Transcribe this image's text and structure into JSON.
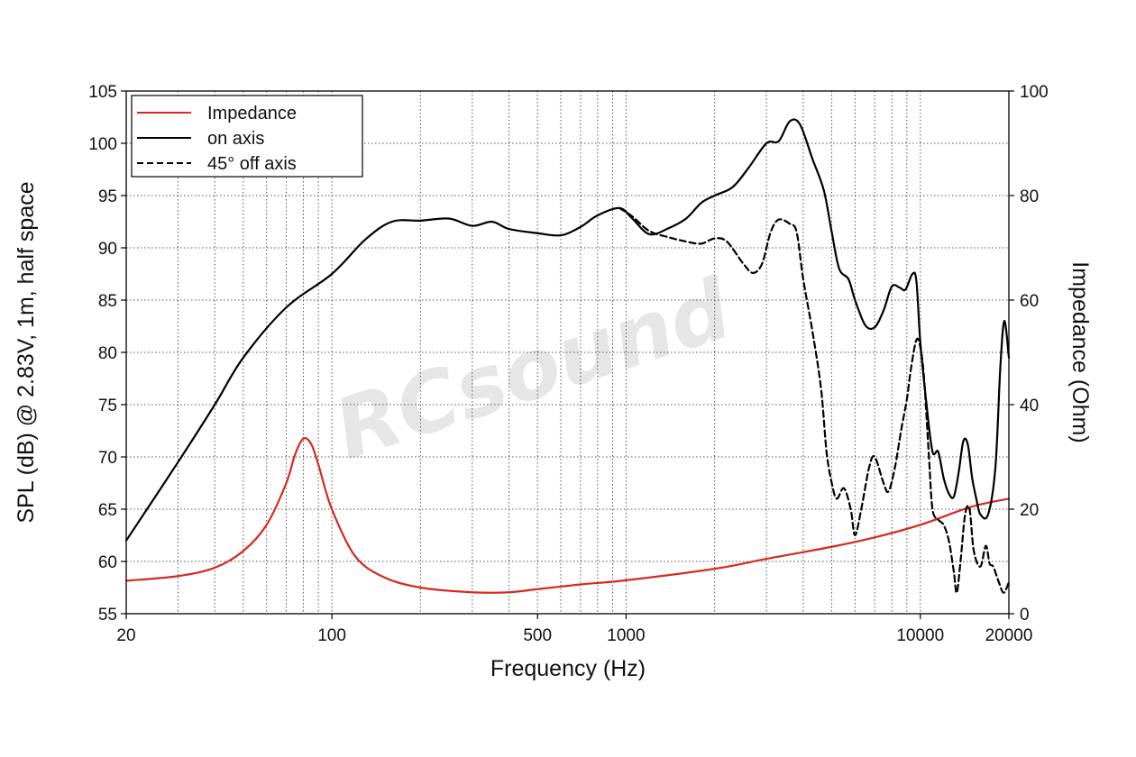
{
  "chart_data": {
    "type": "line",
    "xlabel": "Frequency (Hz)",
    "ylabel": "SPL (dB) @ 2.83V, 1m, half space",
    "y2label": "Impedance (Ohm)",
    "xscale": "log",
    "xlim": [
      20,
      20000
    ],
    "ylim": [
      55,
      105
    ],
    "y2lim": [
      0,
      100
    ],
    "x_ticks": [
      20,
      100,
      500,
      1000,
      10000,
      20000
    ],
    "y_ticks": [
      55,
      60,
      65,
      70,
      75,
      80,
      85,
      90,
      95,
      100,
      105
    ],
    "y2_ticks": [
      0,
      20,
      40,
      60,
      80,
      100
    ],
    "grid": true,
    "legend": "top-left",
    "watermark": "RCsound",
    "series": [
      {
        "name": "Impedance",
        "axis": "right",
        "color": "#d42a1f",
        "dash": "solid",
        "points": [
          [
            20,
            6.3
          ],
          [
            30,
            7.2
          ],
          [
            40,
            8.8
          ],
          [
            50,
            12
          ],
          [
            60,
            17
          ],
          [
            70,
            25
          ],
          [
            75,
            30.5
          ],
          [
            80,
            33.5
          ],
          [
            85,
            32.5
          ],
          [
            90,
            28.5
          ],
          [
            100,
            20
          ],
          [
            120,
            11
          ],
          [
            150,
            7
          ],
          [
            200,
            5
          ],
          [
            300,
            4.1
          ],
          [
            400,
            4.1
          ],
          [
            500,
            4.7
          ],
          [
            700,
            5.6
          ],
          [
            1000,
            6.4
          ],
          [
            2000,
            8.6
          ],
          [
            3000,
            10.5
          ],
          [
            5000,
            12.8
          ],
          [
            7000,
            14.6
          ],
          [
            10000,
            17
          ],
          [
            15000,
            20.5
          ],
          [
            20000,
            22
          ]
        ]
      },
      {
        "name": "on axis",
        "axis": "left",
        "color": "#000000",
        "dash": "solid",
        "points": [
          [
            20,
            62
          ],
          [
            30,
            69.5
          ],
          [
            40,
            75
          ],
          [
            50,
            79.5
          ],
          [
            70,
            84.3
          ],
          [
            100,
            87.5
          ],
          [
            130,
            90.8
          ],
          [
            160,
            92.5
          ],
          [
            200,
            92.6
          ],
          [
            250,
            92.8
          ],
          [
            300,
            92.1
          ],
          [
            350,
            92.5
          ],
          [
            400,
            91.8
          ],
          [
            500,
            91.4
          ],
          [
            600,
            91.2
          ],
          [
            700,
            92
          ],
          [
            800,
            93.1
          ],
          [
            950,
            93.8
          ],
          [
            1050,
            92.8
          ],
          [
            1200,
            91.3
          ],
          [
            1400,
            91.9
          ],
          [
            1600,
            92.8
          ],
          [
            1800,
            94.3
          ],
          [
            2000,
            95
          ],
          [
            2300,
            95.8
          ],
          [
            2600,
            97.6
          ],
          [
            3000,
            100
          ],
          [
            3300,
            100.2
          ],
          [
            3600,
            102.1
          ],
          [
            3900,
            101.8
          ],
          [
            4300,
            98.5
          ],
          [
            4700,
            95.5
          ],
          [
            5000,
            91.5
          ],
          [
            5300,
            88
          ],
          [
            5700,
            87
          ],
          [
            6000,
            85
          ],
          [
            6500,
            82.6
          ],
          [
            7000,
            82.4
          ],
          [
            7500,
            84
          ],
          [
            8000,
            86.3
          ],
          [
            8500,
            86.2
          ],
          [
            8900,
            86
          ],
          [
            9400,
            87.5
          ],
          [
            9700,
            86.8
          ],
          [
            10000,
            81
          ],
          [
            10500,
            75
          ],
          [
            11000,
            70.5
          ],
          [
            11500,
            70.5
          ],
          [
            12000,
            68
          ],
          [
            12500,
            66.5
          ],
          [
            13000,
            66.2
          ],
          [
            13500,
            68.5
          ],
          [
            14000,
            71.5
          ],
          [
            14500,
            71.2
          ],
          [
            15000,
            68
          ],
          [
            15500,
            66
          ],
          [
            16000,
            64.5
          ],
          [
            17000,
            64.5
          ],
          [
            18000,
            69
          ],
          [
            18700,
            78.5
          ],
          [
            19300,
            83
          ],
          [
            20000,
            79.5
          ]
        ]
      },
      {
        "name": "45° off axis",
        "axis": "left",
        "color": "#000000",
        "dash": "dashed",
        "points": [
          [
            950,
            93.8
          ],
          [
            1050,
            93
          ],
          [
            1200,
            91.6
          ],
          [
            1400,
            91
          ],
          [
            1600,
            90.6
          ],
          [
            1800,
            90.4
          ],
          [
            2000,
            90.9
          ],
          [
            2200,
            90.6
          ],
          [
            2500,
            88.5
          ],
          [
            2700,
            87.6
          ],
          [
            2900,
            88.5
          ],
          [
            3100,
            91.5
          ],
          [
            3300,
            92.7
          ],
          [
            3600,
            92.3
          ],
          [
            3800,
            91.5
          ],
          [
            4000,
            87
          ],
          [
            4300,
            82
          ],
          [
            4600,
            76.5
          ],
          [
            4800,
            70.5
          ],
          [
            5000,
            67.5
          ],
          [
            5200,
            66
          ],
          [
            5500,
            67
          ],
          [
            5800,
            65
          ],
          [
            6000,
            62.5
          ],
          [
            6300,
            65
          ],
          [
            6700,
            69
          ],
          [
            7000,
            70
          ],
          [
            7500,
            67.5
          ],
          [
            7800,
            66.7
          ],
          [
            8200,
            69
          ],
          [
            8600,
            72.5
          ],
          [
            9000,
            75.5
          ],
          [
            9300,
            78.5
          ],
          [
            9700,
            81.2
          ],
          [
            10000,
            80.5
          ],
          [
            10300,
            77.5
          ],
          [
            10700,
            70
          ],
          [
            11000,
            65
          ],
          [
            11500,
            64
          ],
          [
            12000,
            63.5
          ],
          [
            12500,
            62
          ],
          [
            13000,
            59
          ],
          [
            13300,
            57
          ],
          [
            13700,
            60
          ],
          [
            14200,
            64.5
          ],
          [
            14700,
            65
          ],
          [
            15200,
            61
          ],
          [
            16000,
            59.5
          ],
          [
            16700,
            61.5
          ],
          [
            17200,
            59.8
          ],
          [
            17700,
            59.5
          ],
          [
            18500,
            58
          ],
          [
            19200,
            57
          ],
          [
            20000,
            58
          ]
        ]
      }
    ]
  }
}
